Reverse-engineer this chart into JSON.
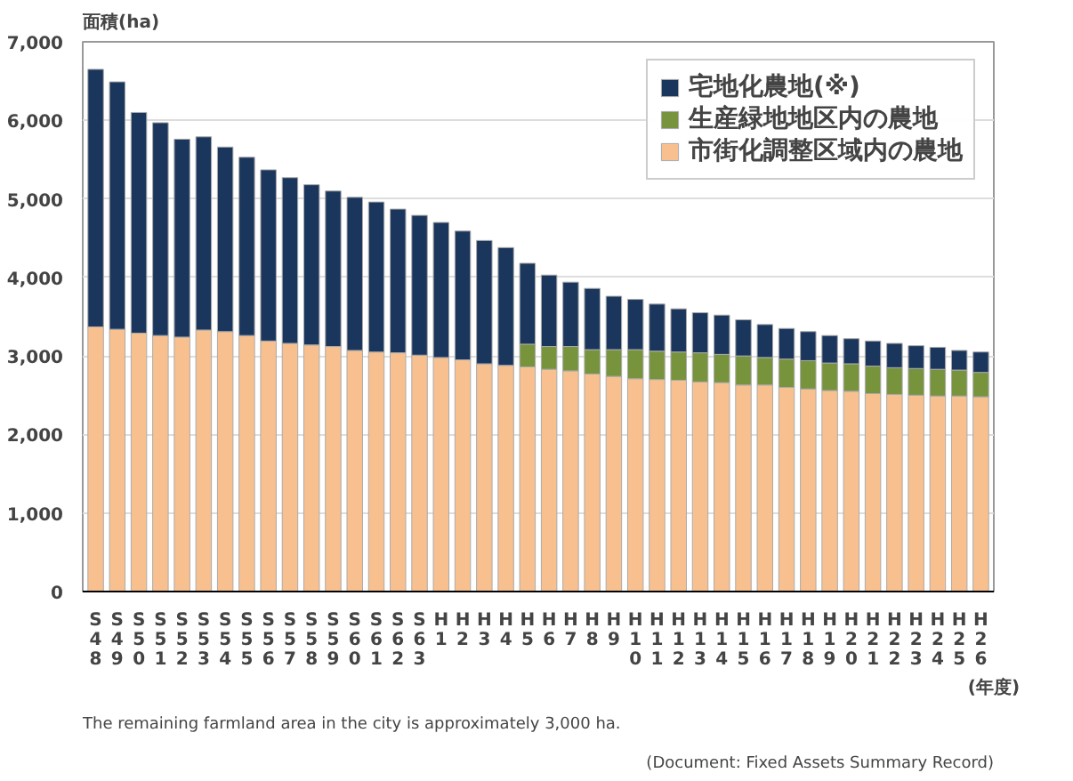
{
  "chart_data": {
    "type": "bar",
    "stacked": true,
    "ylabel": "面積(ha)",
    "xlabel": "(年度)",
    "categories": [
      "S48",
      "S49",
      "S50",
      "S51",
      "S52",
      "S53",
      "S54",
      "S55",
      "S56",
      "S57",
      "S58",
      "S59",
      "S60",
      "S61",
      "S62",
      "S63",
      "H1",
      "H2",
      "H3",
      "H4",
      "H5",
      "H6",
      "H7",
      "H8",
      "H9",
      "H10",
      "H11",
      "H12",
      "H13",
      "H14",
      "H15",
      "H16",
      "H17",
      "H18",
      "H19",
      "H20",
      "H21",
      "H22",
      "H23",
      "H24",
      "H25",
      "H26"
    ],
    "series": [
      {
        "name": "市街化調整区域内の農地",
        "color": "#f9c08f",
        "values": [
          3370,
          3340,
          3290,
          3260,
          3240,
          3330,
          3310,
          3260,
          3190,
          3160,
          3140,
          3120,
          3070,
          3050,
          3040,
          3010,
          2980,
          2950,
          2900,
          2880,
          2860,
          2830,
          2810,
          2770,
          2740,
          2710,
          2700,
          2690,
          2670,
          2660,
          2630,
          2630,
          2600,
          2580,
          2560,
          2550,
          2520,
          2510,
          2500,
          2490,
          2490,
          2480
        ]
      },
      {
        "name": "生産緑地地区内の農地",
        "color": "#77933c",
        "values": [
          null,
          null,
          null,
          null,
          null,
          null,
          null,
          null,
          null,
          null,
          null,
          null,
          null,
          null,
          null,
          null,
          null,
          null,
          null,
          null,
          290,
          290,
          310,
          310,
          340,
          370,
          360,
          360,
          370,
          360,
          370,
          350,
          360,
          360,
          350,
          350,
          350,
          340,
          340,
          340,
          330,
          310
        ]
      },
      {
        "name": "宅地化農地(※)",
        "color": "#1b365d",
        "values": [
          3280,
          3150,
          2810,
          2710,
          2520,
          2460,
          2350,
          2270,
          2180,
          2110,
          2040,
          1980,
          1950,
          1910,
          1830,
          1780,
          1720,
          1640,
          1570,
          1500,
          1030,
          910,
          820,
          780,
          680,
          640,
          600,
          550,
          510,
          500,
          460,
          420,
          390,
          370,
          350,
          320,
          320,
          310,
          290,
          280,
          250,
          260
        ]
      }
    ],
    "ylim": [
      0,
      7000
    ],
    "yticks": [
      {
        "value": 0,
        "label": "0"
      },
      {
        "value": 1000,
        "label": "1,000"
      },
      {
        "value": 2000,
        "label": "2,000"
      },
      {
        "value": 3000,
        "label": "3,000"
      },
      {
        "value": 4000,
        "label": "4,000"
      },
      {
        "value": 5000,
        "label": "5,000"
      },
      {
        "value": 6000,
        "label": "6,000"
      },
      {
        "value": 7000,
        "label": "7,000"
      }
    ],
    "grid": "y",
    "legend": "top right",
    "annotations": [
      "The remaining farmland area in the city is approximately 3,000 ha.",
      "(Document: Fixed Assets Summary Record)"
    ]
  }
}
